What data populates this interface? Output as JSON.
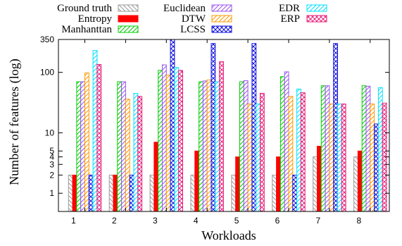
{
  "chart_data": {
    "type": "bar",
    "title": "",
    "xlabel": "Workloads",
    "ylabel": "Number of features (log)",
    "scale_y": "log",
    "ylim": [
      0.5,
      350
    ],
    "yticks": [
      1,
      2,
      3,
      4,
      5,
      10,
      100,
      350
    ],
    "ytick_labels": [
      "1",
      "2",
      "3",
      "4",
      "5",
      "10",
      "100",
      "350"
    ],
    "categories": [
      "1",
      "2",
      "3",
      "4",
      "5",
      "6",
      "7",
      "8"
    ],
    "grid": false,
    "legend_position": "top",
    "series": [
      {
        "name": "Ground truth",
        "color": "#9a9a9a",
        "pattern": "diag-left",
        "values": [
          2,
          2,
          2,
          2,
          2,
          2,
          4,
          4
        ]
      },
      {
        "name": "Entropy",
        "color": "#ff0000",
        "pattern": "solid",
        "values": [
          2,
          2,
          7,
          5,
          4,
          4,
          6,
          5
        ]
      },
      {
        "name": "Manhanttan",
        "color": "#00cc00",
        "pattern": "diag-right",
        "values": [
          70,
          70,
          108,
          70,
          70,
          85,
          60,
          60
        ]
      },
      {
        "name": "Euclidean",
        "color": "#9955ee",
        "pattern": "diag-right",
        "values": [
          70,
          70,
          133,
          72,
          73,
          102,
          60,
          59
        ]
      },
      {
        "name": "DTW",
        "color": "#ff9900",
        "pattern": "diag-right",
        "values": [
          98,
          36,
          90,
          75,
          30,
          40,
          30,
          30
        ]
      },
      {
        "name": "LCSS",
        "color": "#1111dd",
        "pattern": "crosshatch",
        "values": [
          2,
          2,
          350,
          300,
          300,
          2,
          300,
          14
        ]
      },
      {
        "name": "EDR",
        "color": "#00e0ff",
        "pattern": "diag-right",
        "values": [
          230,
          45,
          120,
          70,
          30,
          53,
          30,
          56
        ]
      },
      {
        "name": "ERP",
        "color": "#e8207a",
        "pattern": "crosshatch",
        "values": [
          135,
          40,
          108,
          150,
          45,
          46,
          30,
          31
        ]
      }
    ]
  }
}
